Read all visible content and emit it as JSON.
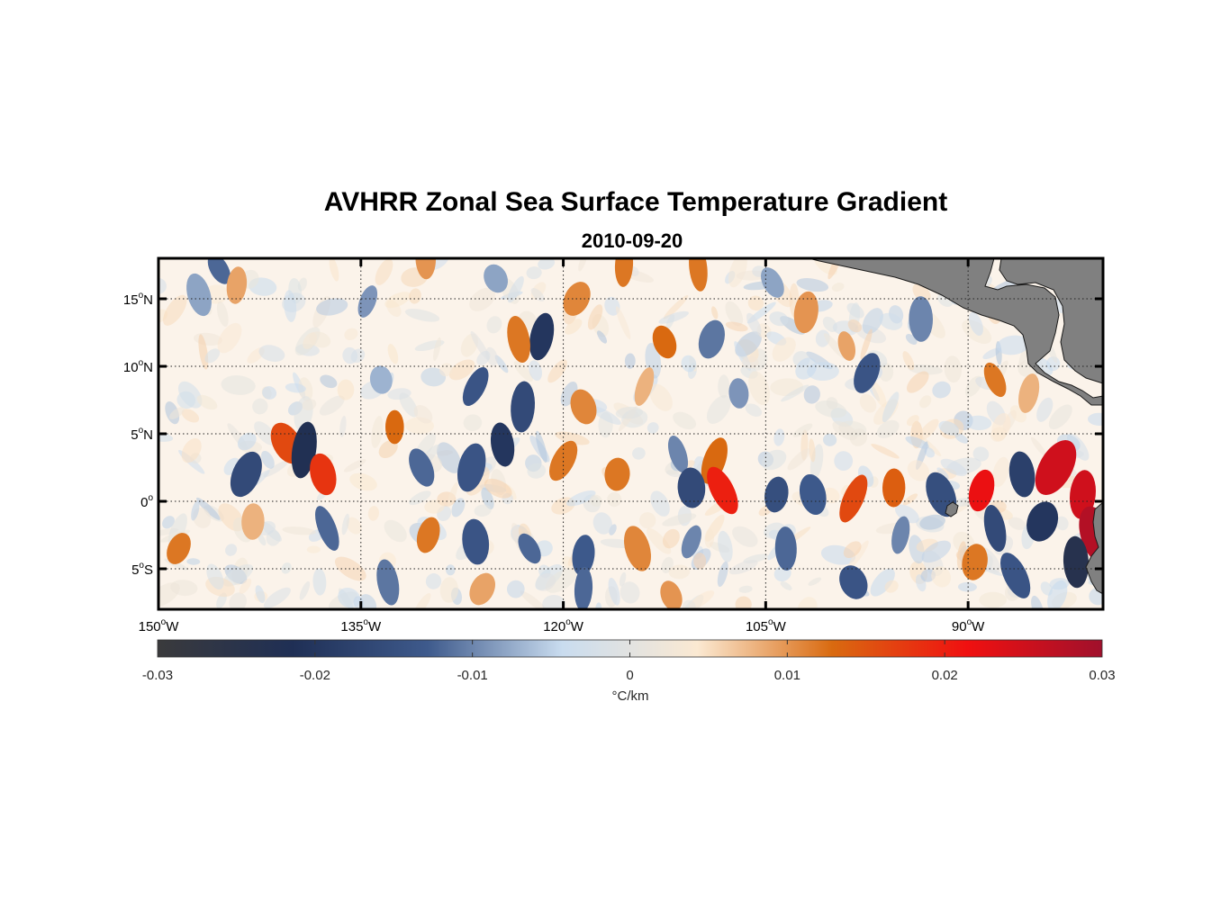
{
  "figure": {
    "title": "AVHRR Zonal Sea Surface Temperature Gradient",
    "subtitle": "2010-09-20"
  },
  "map": {
    "lon_range": [
      -150,
      -80
    ],
    "lat_range": [
      -8,
      18
    ],
    "grid": true,
    "land_color": "#808080",
    "lon_ticks": [
      {
        "value": -150,
        "deg": "150",
        "hemi": "W"
      },
      {
        "value": -135,
        "deg": "135",
        "hemi": "W"
      },
      {
        "value": -120,
        "deg": "120",
        "hemi": "W"
      },
      {
        "value": -105,
        "deg": "105",
        "hemi": "W"
      },
      {
        "value": -90,
        "deg": "90",
        "hemi": "W"
      }
    ],
    "lat_ticks": [
      {
        "value": 15,
        "deg": "15",
        "hemi": "N"
      },
      {
        "value": 10,
        "deg": "10",
        "hemi": "N"
      },
      {
        "value": 5,
        "deg": "5",
        "hemi": "N"
      },
      {
        "value": 0,
        "deg": "0",
        "hemi": ""
      },
      {
        "value": -5,
        "deg": "5",
        "hemi": "S"
      }
    ]
  },
  "chart_data": {
    "type": "heatmap",
    "title": "AVHRR Zonal Sea Surface Temperature Gradient",
    "subtitle": "2010-09-20",
    "xlabel": "",
    "ylabel": "",
    "x_range": [
      -150,
      -80
    ],
    "y_range": [
      -8,
      18
    ],
    "grid": true,
    "colorbar": {
      "label": "°C/km",
      "range": [
        -0.03,
        0.03
      ],
      "ticks": [
        -0.03,
        -0.02,
        -0.01,
        0,
        0.01,
        0.02,
        0.03
      ],
      "tick_labels": [
        "-0.03",
        "-0.02",
        "-0.01",
        "0",
        "0.01",
        "0.02",
        "0.03"
      ],
      "colors": [
        "#3a3a3c",
        "#1f2f55",
        "#3e5a8c",
        "#c9dcef",
        "#fbe9d2",
        "#d96a10",
        "#f01010",
        "#a0102c"
      ]
    },
    "features": [
      {
        "lon": -145.5,
        "lat": 17.2,
        "value": -0.012
      },
      {
        "lon": -144.2,
        "lat": 16.0,
        "value": 0.009
      },
      {
        "lon": -147.0,
        "lat": 15.3,
        "value": -0.008
      },
      {
        "lon": -134.5,
        "lat": 14.8,
        "value": -0.009
      },
      {
        "lon": -130.2,
        "lat": 18.0,
        "value": 0.01
      },
      {
        "lon": -125.0,
        "lat": 16.5,
        "value": -0.008
      },
      {
        "lon": -121.6,
        "lat": 12.2,
        "value": -0.02
      },
      {
        "lon": -123.3,
        "lat": 12.0,
        "value": 0.012
      },
      {
        "lon": -119.0,
        "lat": 15.0,
        "value": 0.011
      },
      {
        "lon": -115.5,
        "lat": 17.5,
        "value": 0.012
      },
      {
        "lon": -112.5,
        "lat": 11.8,
        "value": 0.013
      },
      {
        "lon": -109.0,
        "lat": 12.0,
        "value": -0.011
      },
      {
        "lon": -110.0,
        "lat": 17.3,
        "value": 0.012
      },
      {
        "lon": -104.5,
        "lat": 16.2,
        "value": -0.008
      },
      {
        "lon": -102.0,
        "lat": 14.0,
        "value": 0.01
      },
      {
        "lon": -99.0,
        "lat": 11.5,
        "value": 0.009
      },
      {
        "lon": -97.5,
        "lat": 9.5,
        "value": -0.014
      },
      {
        "lon": -93.5,
        "lat": 13.5,
        "value": -0.01
      },
      {
        "lon": -88.0,
        "lat": 9.0,
        "value": 0.012
      },
      {
        "lon": -85.5,
        "lat": 8.0,
        "value": 0.008
      },
      {
        "lon": -133.5,
        "lat": 9.0,
        "value": -0.007
      },
      {
        "lon": -126.5,
        "lat": 8.5,
        "value": -0.014
      },
      {
        "lon": -123.0,
        "lat": 7.0,
        "value": -0.016
      },
      {
        "lon": -118.5,
        "lat": 7.0,
        "value": 0.011
      },
      {
        "lon": -114.0,
        "lat": 8.5,
        "value": 0.008
      },
      {
        "lon": -107.0,
        "lat": 8.0,
        "value": -0.009
      },
      {
        "lon": -140.5,
        "lat": 4.3,
        "value": 0.016
      },
      {
        "lon": -139.2,
        "lat": 3.8,
        "value": -0.022
      },
      {
        "lon": -137.8,
        "lat": 2.0,
        "value": 0.018
      },
      {
        "lon": -143.5,
        "lat": 2.0,
        "value": -0.016
      },
      {
        "lon": -132.5,
        "lat": 5.5,
        "value": 0.013
      },
      {
        "lon": -130.5,
        "lat": 2.5,
        "value": -0.012
      },
      {
        "lon": -126.8,
        "lat": 2.5,
        "value": -0.014
      },
      {
        "lon": -124.5,
        "lat": 4.2,
        "value": -0.02
      },
      {
        "lon": -120.0,
        "lat": 3.0,
        "value": 0.012
      },
      {
        "lon": -116.0,
        "lat": 2.0,
        "value": 0.012
      },
      {
        "lon": -111.5,
        "lat": 3.5,
        "value": -0.01
      },
      {
        "lon": -108.8,
        "lat": 3.0,
        "value": 0.013
      },
      {
        "lon": -110.5,
        "lat": 1.0,
        "value": -0.016
      },
      {
        "lon": -108.2,
        "lat": 0.8,
        "value": 0.02
      },
      {
        "lon": -104.2,
        "lat": 0.5,
        "value": -0.015
      },
      {
        "lon": -101.5,
        "lat": 0.5,
        "value": -0.013
      },
      {
        "lon": -98.5,
        "lat": 0.2,
        "value": 0.016
      },
      {
        "lon": -95.5,
        "lat": 1.0,
        "value": 0.014
      },
      {
        "lon": -92.0,
        "lat": 0.5,
        "value": -0.015
      },
      {
        "lon": -89.0,
        "lat": 0.8,
        "value": 0.022
      },
      {
        "lon": -86.0,
        "lat": 2.0,
        "value": -0.018
      },
      {
        "lon": -83.5,
        "lat": 2.5,
        "value": 0.025
      },
      {
        "lon": -81.5,
        "lat": 0.5,
        "value": 0.025
      },
      {
        "lon": -80.5,
        "lat": -2.5,
        "value": 0.028
      },
      {
        "lon": -84.5,
        "lat": -1.5,
        "value": -0.02
      },
      {
        "lon": -82.0,
        "lat": -4.5,
        "value": -0.024
      },
      {
        "lon": -86.5,
        "lat": -5.5,
        "value": -0.014
      },
      {
        "lon": -89.5,
        "lat": -4.5,
        "value": 0.012
      },
      {
        "lon": -88.0,
        "lat": -2.0,
        "value": -0.016
      },
      {
        "lon": -148.5,
        "lat": -3.5,
        "value": 0.012
      },
      {
        "lon": -143.0,
        "lat": -1.5,
        "value": 0.008
      },
      {
        "lon": -137.5,
        "lat": -2.0,
        "value": -0.012
      },
      {
        "lon": -130.0,
        "lat": -2.5,
        "value": 0.012
      },
      {
        "lon": -126.5,
        "lat": -3.0,
        "value": -0.014
      },
      {
        "lon": -122.5,
        "lat": -3.5,
        "value": -0.012
      },
      {
        "lon": -118.5,
        "lat": -4.0,
        "value": -0.013
      },
      {
        "lon": -114.5,
        "lat": -3.5,
        "value": 0.011
      },
      {
        "lon": -110.5,
        "lat": -3.0,
        "value": -0.01
      },
      {
        "lon": -103.5,
        "lat": -3.5,
        "value": -0.012
      },
      {
        "lon": -98.5,
        "lat": -6.0,
        "value": -0.014
      },
      {
        "lon": -95.0,
        "lat": -2.5,
        "value": -0.01
      },
      {
        "lon": -133.0,
        "lat": -6.0,
        "value": -0.011
      },
      {
        "lon": -126.0,
        "lat": -6.5,
        "value": 0.009
      },
      {
        "lon": -118.5,
        "lat": -6.5,
        "value": -0.012
      },
      {
        "lon": -112.0,
        "lat": -7.0,
        "value": 0.01
      }
    ]
  }
}
